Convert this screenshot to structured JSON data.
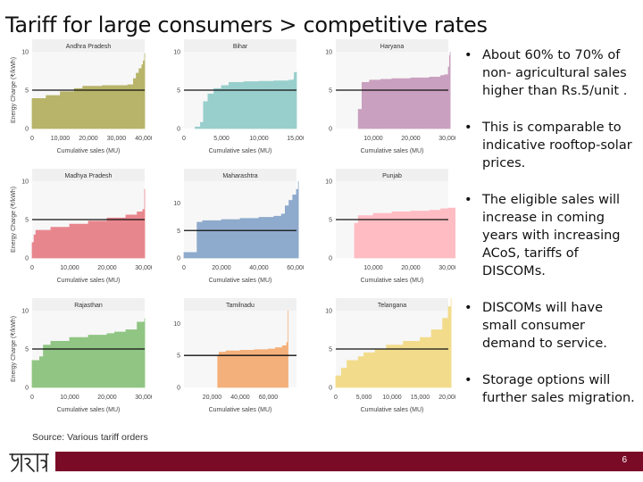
{
  "title": "Tariff for large consumers > competitive rates",
  "bullets": [
    "About 60% to 70% of non- agricultural sales higher than Rs.5/unit .",
    "This is comparable to indicative rooftop-solar prices.",
    "The eligible sales will increase in coming years with increasing ACoS, tariffs of DISCOMs.",
    "DISCOMs will have small consumer demand to service.",
    "Storage options will further sales migration."
  ],
  "bullet_symbol": "•",
  "source": "Source: Various tariff orders",
  "page_number": "6",
  "ylabel": "Energy Charge (₹/kWh)",
  "xlabel": "Cumulative sales (MU)",
  "chart_data": [
    {
      "type": "area",
      "title": "Andhra Pradesh",
      "color": "#b8b46a",
      "xlim": [
        0,
        40000
      ],
      "ylim": [
        0,
        10
      ],
      "xticks": [
        0,
        10000,
        20000,
        30000,
        40000
      ],
      "yticks": [
        0,
        5,
        10
      ],
      "reference_line": 5,
      "x": [
        0,
        5000,
        10000,
        15000,
        18000,
        25000,
        30000,
        34000,
        36000,
        37000,
        38000,
        39000,
        39500,
        40000
      ],
      "y": [
        3.9,
        4.3,
        4.8,
        5.2,
        5.5,
        5.6,
        5.6,
        5.7,
        6.5,
        7.2,
        7.8,
        8.3,
        8.8,
        9.8
      ]
    },
    {
      "type": "area",
      "title": "Bihar",
      "color": "#98cfcc",
      "xlim": [
        0,
        15000
      ],
      "ylim": [
        0,
        10
      ],
      "xticks": [
        0,
        5000,
        10000,
        15000
      ],
      "yticks": [
        0,
        5,
        10
      ],
      "reference_line": 5,
      "x": [
        1500,
        2200,
        2600,
        3200,
        4000,
        5000,
        6000,
        8000,
        10000,
        12000,
        14000,
        14600,
        14700,
        15000
      ],
      "y": [
        0.2,
        0.8,
        3.5,
        4.5,
        5.2,
        5.6,
        6.0,
        6.1,
        6.15,
        6.2,
        6.3,
        6.4,
        7.3,
        7.4
      ]
    },
    {
      "type": "area",
      "title": "Haryana",
      "color": "#c9a0bf",
      "xlim": [
        0,
        30000
      ],
      "ylim": [
        0,
        10
      ],
      "xticks": [
        10000,
        20000,
        30000
      ],
      "yticks": [
        0,
        5,
        10
      ],
      "reference_line": 5,
      "x": [
        6000,
        7000,
        9000,
        12000,
        15000,
        20000,
        25000,
        28000,
        29000,
        30000,
        30300,
        30500
      ],
      "y": [
        2.5,
        6.0,
        6.3,
        6.4,
        6.5,
        6.6,
        6.7,
        6.9,
        7.0,
        8.0,
        9.5,
        10.0
      ]
    },
    {
      "type": "area",
      "title": "Madhya Pradesh",
      "color": "#e8868e",
      "xlim": [
        0,
        30000
      ],
      "ylim": [
        0,
        10
      ],
      "xticks": [
        0,
        10000,
        20000,
        30000
      ],
      "yticks": [
        0,
        5,
        10
      ],
      "reference_line": 5,
      "x": [
        0,
        500,
        1000,
        5000,
        10000,
        15000,
        20000,
        25000,
        28000,
        29500,
        30000
      ],
      "y": [
        2.0,
        3.0,
        3.6,
        4.0,
        4.4,
        4.8,
        5.2,
        5.6,
        6.0,
        6.3,
        9.0
      ]
    },
    {
      "type": "area",
      "title": "Maharashtra",
      "color": "#8eaacc",
      "xlim": [
        0,
        60000
      ],
      "ylim": [
        0,
        14
      ],
      "xticks": [
        0,
        20000,
        40000,
        60000
      ],
      "yticks": [
        0,
        5,
        10
      ],
      "reference_line": 5,
      "x": [
        0,
        6000,
        7000,
        10000,
        20000,
        30000,
        40000,
        48000,
        52000,
        54000,
        56000,
        58000,
        60000,
        61000
      ],
      "y": [
        1.0,
        1.0,
        6.5,
        6.8,
        7.0,
        7.2,
        7.4,
        7.6,
        8.0,
        9.5,
        10.5,
        11.5,
        12.5,
        14.0
      ]
    },
    {
      "type": "area",
      "title": "Punjab",
      "color": "#ffbcc3",
      "xlim": [
        0,
        30000
      ],
      "ylim": [
        0,
        10
      ],
      "xticks": [
        10000,
        20000,
        30000
      ],
      "yticks": [
        0,
        5,
        10
      ],
      "reference_line": 5,
      "x": [
        5000,
        6000,
        10000,
        15000,
        20000,
        25000,
        28000,
        30000,
        32000
      ],
      "y": [
        4.5,
        5.5,
        5.8,
        6.0,
        6.1,
        6.2,
        6.4,
        6.5,
        6.8
      ]
    },
    {
      "type": "area",
      "title": "Rajasthan",
      "color": "#90c583",
      "xlim": [
        0,
        30000
      ],
      "ylim": [
        0,
        10
      ],
      "xticks": [
        0,
        10000,
        20000,
        30000
      ],
      "yticks": [
        0,
        5,
        10
      ],
      "reference_line": 5,
      "x": [
        0,
        2000,
        3000,
        5000,
        10000,
        15000,
        20000,
        22000,
        25000,
        28000,
        30000
      ],
      "y": [
        3.5,
        4.0,
        5.5,
        6.0,
        6.5,
        6.8,
        7.0,
        7.2,
        7.5,
        8.5,
        9.0
      ]
    },
    {
      "type": "area",
      "title": "Tamilnadu",
      "color": "#f4b07a",
      "xlim": [
        0,
        80000
      ],
      "ylim": [
        0,
        12
      ],
      "xticks": [
        20000,
        40000,
        60000
      ],
      "yticks": [
        0,
        5,
        10
      ],
      "reference_line": 5,
      "x": [
        24000,
        25000,
        30000,
        40000,
        50000,
        60000,
        65000,
        70000,
        73000,
        74000
      ],
      "y": [
        5.0,
        5.5,
        5.7,
        5.8,
        5.9,
        6.0,
        6.2,
        6.5,
        7.0,
        12.0
      ]
    },
    {
      "type": "area",
      "title": "Telangana",
      "color": "#f2dc8c",
      "xlim": [
        0,
        20000
      ],
      "ylim": [
        0,
        10
      ],
      "xticks": [
        0,
        5000,
        10000,
        15000,
        20000
      ],
      "yticks": [
        0,
        5,
        10
      ],
      "reference_line": 5,
      "x": [
        0,
        1000,
        2000,
        4000,
        5000,
        7000,
        9000,
        12000,
        15000,
        17000,
        19000,
        20000,
        20500
      ],
      "y": [
        1.5,
        2.5,
        3.5,
        4.0,
        4.5,
        5.0,
        5.5,
        6.0,
        6.5,
        7.5,
        9.0,
        10.5,
        12.0
      ]
    }
  ]
}
